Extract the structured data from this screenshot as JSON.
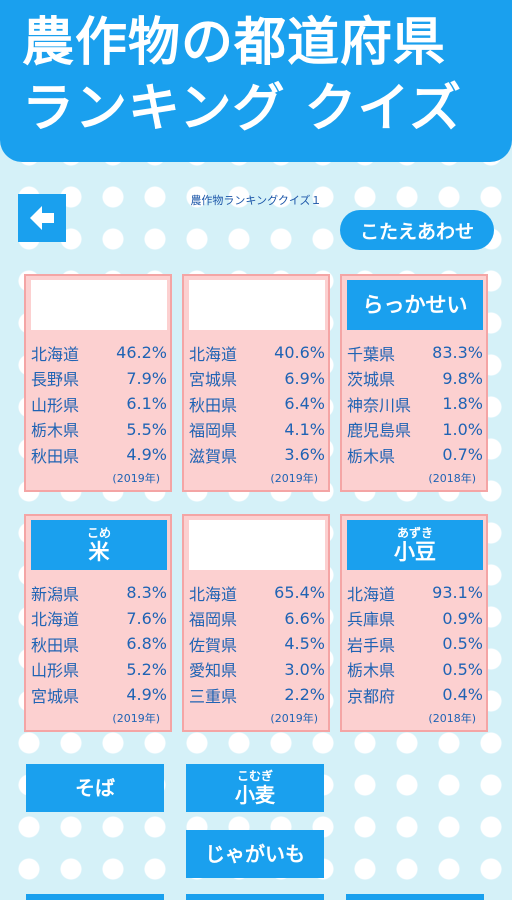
{
  "header": {
    "title_line1": "農作物の都道府県",
    "title_line2": "ランキング クイズ"
  },
  "subtitle": "農作物ランキングクイズ１",
  "answer_button": "こたえあわせ",
  "cards": [
    {
      "label": "",
      "furigana": "",
      "rows": [
        [
          "北海道",
          "46.2%"
        ],
        [
          "長野県",
          "7.9%"
        ],
        [
          "山形県",
          "6.1%"
        ],
        [
          "栃木県",
          "5.5%"
        ],
        [
          "秋田県",
          "4.9%"
        ]
      ],
      "year": "(2019年)"
    },
    {
      "label": "",
      "furigana": "",
      "rows": [
        [
          "北海道",
          "40.6%"
        ],
        [
          "宮城県",
          "6.9%"
        ],
        [
          "秋田県",
          "6.4%"
        ],
        [
          "福岡県",
          "4.1%"
        ],
        [
          "滋賀県",
          "3.6%"
        ]
      ],
      "year": "(2019年)"
    },
    {
      "label": "らっかせい",
      "furigana": "",
      "rows": [
        [
          "千葉県",
          "83.3%"
        ],
        [
          "茨城県",
          "9.8%"
        ],
        [
          "神奈川県",
          "1.8%"
        ],
        [
          "鹿児島県",
          "1.0%"
        ],
        [
          "栃木県",
          "0.7%"
        ]
      ],
      "year": "(2018年)"
    },
    {
      "label": "米",
      "furigana": "こめ",
      "rows": [
        [
          "新潟県",
          "8.3%"
        ],
        [
          "北海道",
          "7.6%"
        ],
        [
          "秋田県",
          "6.8%"
        ],
        [
          "山形県",
          "5.2%"
        ],
        [
          "宮城県",
          "4.9%"
        ]
      ],
      "year": "(2019年)"
    },
    {
      "label": "",
      "furigana": "",
      "rows": [
        [
          "北海道",
          "65.4%"
        ],
        [
          "福岡県",
          "6.6%"
        ],
        [
          "佐賀県",
          "4.5%"
        ],
        [
          "愛知県",
          "3.0%"
        ],
        [
          "三重県",
          "2.2%"
        ]
      ],
      "year": "(2019年)"
    },
    {
      "label": "小豆",
      "furigana": "あずき",
      "rows": [
        [
          "北海道",
          "93.1%"
        ],
        [
          "兵庫県",
          "0.9%"
        ],
        [
          "岩手県",
          "0.5%"
        ],
        [
          "栃木県",
          "0.5%"
        ],
        [
          "京都府",
          "0.4%"
        ]
      ],
      "year": "(2018年)"
    }
  ],
  "choices": [
    {
      "label": "そば",
      "furigana": ""
    },
    {
      "label": "小麦",
      "furigana": "こむぎ"
    },
    {
      "label": "じゃがいも",
      "furigana": ""
    }
  ]
}
